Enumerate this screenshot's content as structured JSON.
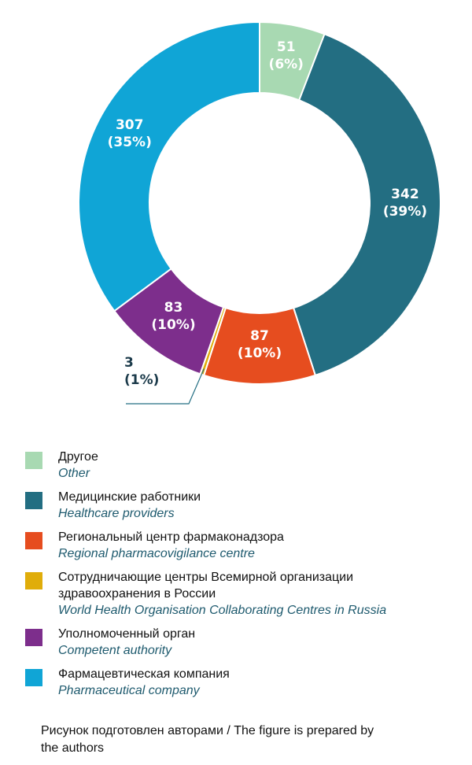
{
  "chart_data": {
    "type": "pie",
    "style": "donut",
    "categories": [
      "Другое",
      "Медицинские работники",
      "Региональный центр фармаконадзора",
      "Сотрудничающие центры Всемирной организации здравоохранения в России",
      "Уполномоченный орган",
      "Фармацевтическая компания"
    ],
    "values": [
      51,
      342,
      87,
      3,
      83,
      307
    ],
    "percent_labels": [
      "(6%)",
      "(39%)",
      "(10%)",
      "(1%)",
      "(10%)",
      "(35%)"
    ],
    "colors": [
      "#a8d9b2",
      "#236e82",
      "#e64d1f",
      "#e0ad0a",
      "#7d2e8c",
      "#10a5d6"
    ]
  },
  "legend": [
    {
      "ru": "Другое",
      "en": "Other",
      "color": "#a8d9b2"
    },
    {
      "ru": "Медицинские работники",
      "en": "Healthcare providers",
      "color": "#236e82"
    },
    {
      "ru": "Региональный центр фармаконадзора",
      "en": "Regional pharmacovigilance centre",
      "color": "#e64d1f"
    },
    {
      "ru": "Сотрудничающие центры Всемирной организации",
      "ru2": "здравоохранения в России",
      "en": "World Health Organisation Collaborating Centres in Russia",
      "color": "#e0ad0a"
    },
    {
      "ru": "Уполномоченный орган",
      "en": "Competent authority",
      "color": "#7d2e8c"
    },
    {
      "ru": "Фармацевтическая компания",
      "en": "Pharmaceutical company",
      "color": "#10a5d6"
    }
  ],
  "caption": {
    "line1": "Рисунок подготовлен авторами / The figure is prepared by",
    "line2": "the authors"
  }
}
